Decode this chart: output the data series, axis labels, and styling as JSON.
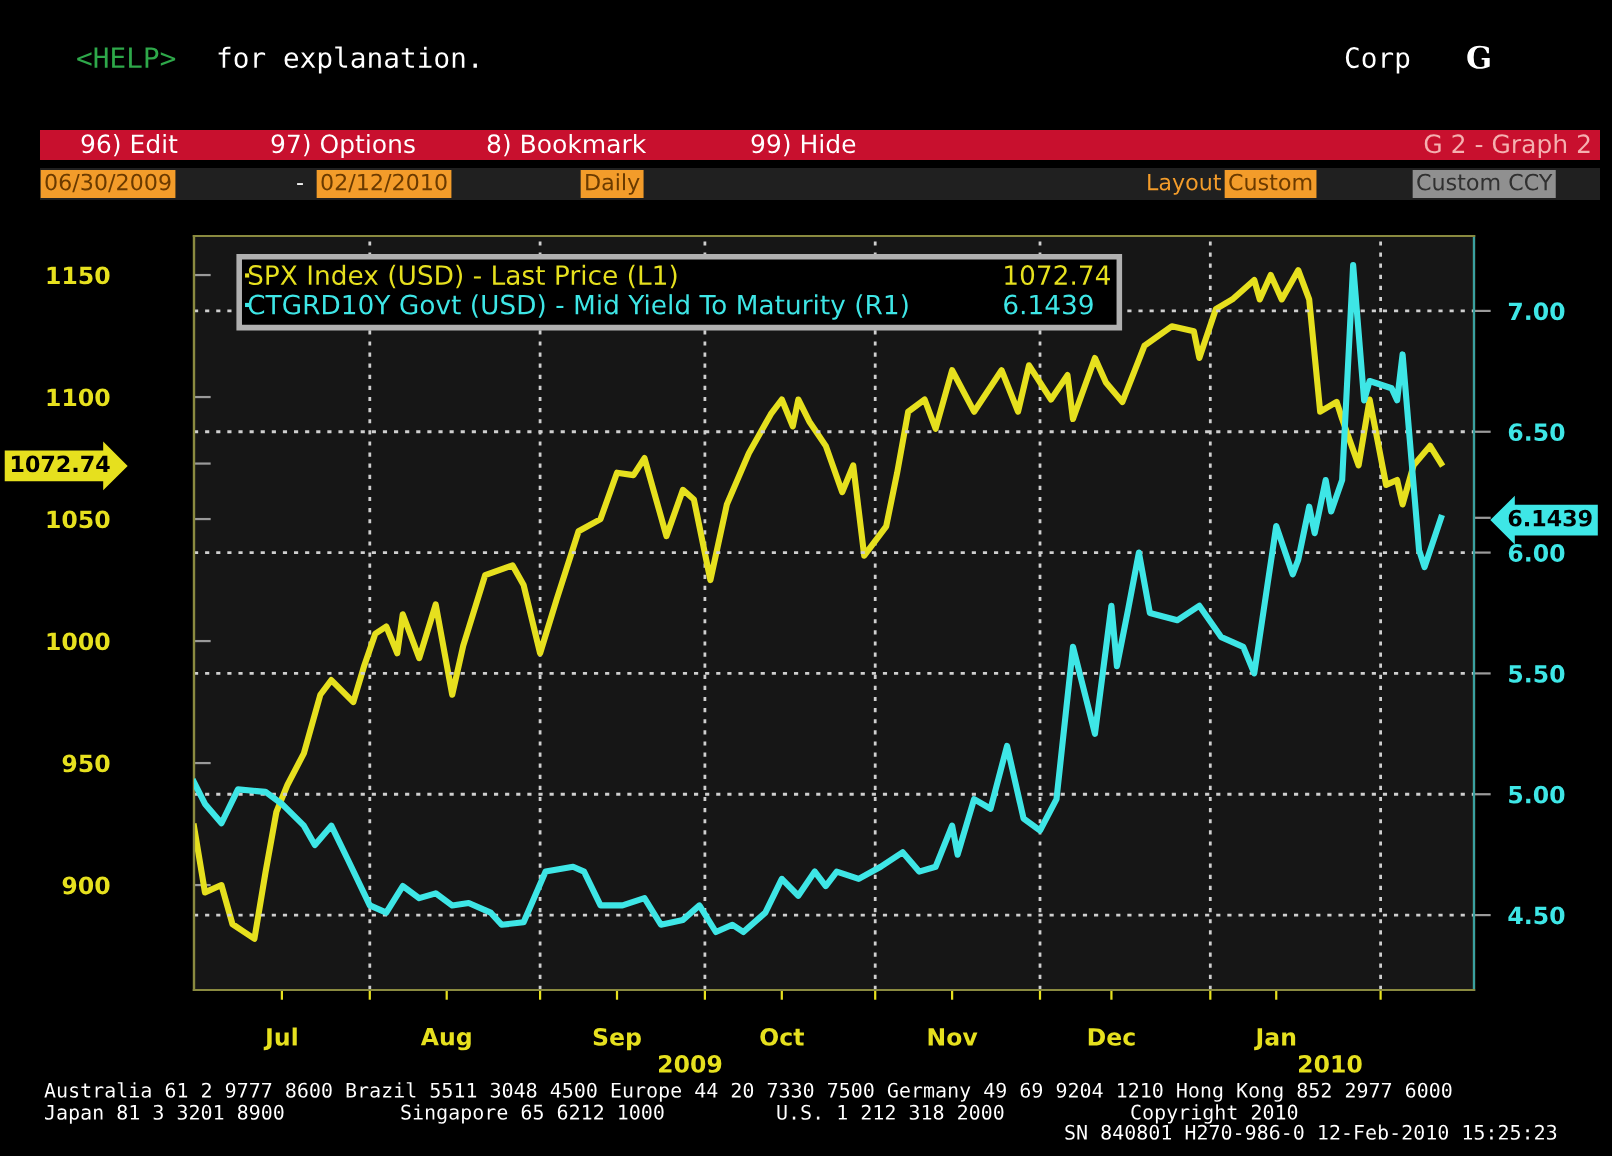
{
  "chart_data": {
    "type": "line",
    "series": [
      {
        "name": "SPX Index (USD) - Last Price (L1)",
        "color": "#e6e01e",
        "axis": "y",
        "x": [
          "2009-06-30",
          "2009-07-02",
          "2009-07-05",
          "2009-07-07",
          "2009-07-09",
          "2009-07-11",
          "2009-07-13",
          "2009-07-15",
          "2009-07-17",
          "2009-07-20",
          "2009-07-23",
          "2009-07-25",
          "2009-07-29",
          "2009-07-31",
          "2009-08-02",
          "2009-08-04",
          "2009-08-06",
          "2009-08-07",
          "2009-08-10",
          "2009-08-13",
          "2009-08-16",
          "2009-08-18",
          "2009-08-22",
          "2009-08-27",
          "2009-08-29",
          "2009-09-01",
          "2009-09-04",
          "2009-09-08",
          "2009-09-12",
          "2009-09-15",
          "2009-09-18",
          "2009-09-20",
          "2009-09-24",
          "2009-09-27",
          "2009-09-29",
          "2009-10-02",
          "2009-10-05",
          "2009-10-09",
          "2009-10-13",
          "2009-10-15",
          "2009-10-17",
          "2009-10-18",
          "2009-10-20",
          "2009-10-23",
          "2009-10-26",
          "2009-10-28",
          "2009-10-30",
          "2009-11-03",
          "2009-11-05",
          "2009-11-07",
          "2009-11-10",
          "2009-11-12",
          "2009-11-15",
          "2009-11-19",
          "2009-11-24",
          "2009-11-27",
          "2009-11-29",
          "2009-12-03",
          "2009-12-06",
          "2009-12-07",
          "2009-12-11",
          "2009-12-13",
          "2009-12-16",
          "2009-12-20",
          "2009-12-25",
          "2009-12-29",
          "2009-12-30",
          "2010-01-02",
          "2010-01-05",
          "2010-01-09",
          "2010-01-10",
          "2010-01-12",
          "2010-01-14",
          "2010-01-17",
          "2010-01-19",
          "2010-01-21",
          "2010-01-24",
          "2010-01-25",
          "2010-01-28",
          "2010-01-30",
          "2010-02-02",
          "2010-02-04",
          "2010-02-05",
          "2010-02-07",
          "2010-02-10",
          "2010-02-12"
        ],
        "values": [
          924,
          897,
          900,
          884,
          881,
          878,
          905,
          930,
          941,
          954,
          978,
          984,
          975,
          990,
          1003,
          1006,
          995,
          1011,
          993,
          1015,
          978,
          998,
          1027,
          1031,
          1023,
          995,
          1017,
          1045,
          1050,
          1069,
          1068,
          1075,
          1043,
          1062,
          1058,
          1025,
          1056,
          1077,
          1093,
          1099,
          1088,
          1099,
          1090,
          1080,
          1061,
          1072,
          1035,
          1047,
          1069,
          1094,
          1099,
          1087,
          1111,
          1094,
          1111,
          1094,
          1113,
          1099,
          1109,
          1091,
          1116,
          1106,
          1098,
          1121,
          1129,
          1127,
          1116,
          1136,
          1140,
          1148,
          1140,
          1150,
          1140,
          1152,
          1140,
          1094,
          1098,
          1091,
          1072,
          1099,
          1064,
          1066,
          1056,
          1072,
          1080,
          1072.74
        ],
        "value_labels": [
          null,
          null,
          null,
          null,
          null,
          null,
          null,
          null,
          null,
          null,
          null,
          null,
          null,
          null,
          null,
          null,
          null,
          null,
          null,
          null,
          null,
          null,
          null,
          null,
          null,
          null,
          null,
          null,
          null,
          null,
          null,
          null,
          null,
          null,
          null,
          null,
          null,
          null,
          null,
          null,
          null,
          null,
          null,
          null,
          null,
          null,
          null,
          null,
          null,
          null,
          null,
          null,
          null,
          null,
          null,
          null,
          null,
          null,
          null,
          null,
          null,
          null,
          null,
          null,
          null,
          null,
          null,
          null,
          null,
          null,
          null,
          null,
          null,
          null,
          null,
          null,
          null,
          null,
          null,
          null,
          null,
          null,
          null,
          null,
          null,
          null
        ]
      },
      {
        "name": "CTGRD10Y Govt (USD) - Mid Yield To Maturity (R1)",
        "color": "#3ee6e6",
        "axis": "y2",
        "x": [
          "2009-06-30",
          "2009-07-02",
          "2009-07-05",
          "2009-07-08",
          "2009-07-13",
          "2009-07-16",
          "2009-07-20",
          "2009-07-22",
          "2009-07-25",
          "2009-07-28",
          "2009-08-01",
          "2009-08-04",
          "2009-08-07",
          "2009-08-10",
          "2009-08-13",
          "2009-08-16",
          "2009-08-19",
          "2009-08-23",
          "2009-08-25",
          "2009-08-29",
          "2009-09-02",
          "2009-09-07",
          "2009-09-09",
          "2009-09-12",
          "2009-09-16",
          "2009-09-20",
          "2009-09-23",
          "2009-09-27",
          "2009-09-30",
          "2009-10-03",
          "2009-10-06",
          "2009-10-08",
          "2009-10-12",
          "2009-10-15",
          "2009-10-18",
          "2009-10-21",
          "2009-10-23",
          "2009-10-25",
          "2009-10-29",
          "2009-11-02",
          "2009-11-06",
          "2009-11-09",
          "2009-11-12",
          "2009-11-15",
          "2009-11-16",
          "2009-11-19",
          "2009-11-22",
          "2009-11-25",
          "2009-11-28",
          "2009-12-01",
          "2009-12-04",
          "2009-12-07",
          "2009-12-11",
          "2009-12-14",
          "2009-12-15",
          "2009-12-17",
          "2009-12-19",
          "2009-12-21",
          "2009-12-26",
          "2009-12-30",
          "2010-01-03",
          "2010-01-07",
          "2010-01-09",
          "2010-01-13",
          "2010-01-16",
          "2010-01-17",
          "2010-01-19",
          "2010-01-20",
          "2010-01-22",
          "2010-01-23",
          "2010-01-25",
          "2010-01-27",
          "2010-01-29",
          "2010-01-30",
          "2010-02-03",
          "2010-02-04",
          "2010-02-05",
          "2010-02-08",
          "2010-02-09",
          "2010-02-12"
        ],
        "values": [
          5.05,
          4.96,
          4.88,
          5.02,
          5.01,
          4.96,
          4.87,
          4.79,
          4.87,
          4.73,
          4.54,
          4.51,
          4.62,
          4.57,
          4.59,
          4.54,
          4.55,
          4.51,
          4.46,
          4.47,
          4.68,
          4.7,
          4.68,
          4.54,
          4.54,
          4.57,
          4.46,
          4.48,
          4.54,
          4.43,
          4.46,
          4.43,
          4.51,
          4.65,
          4.58,
          4.68,
          4.62,
          4.68,
          4.65,
          4.7,
          4.76,
          4.68,
          4.7,
          4.87,
          4.75,
          4.98,
          4.94,
          5.2,
          4.9,
          4.85,
          4.98,
          5.61,
          5.25,
          5.78,
          5.53,
          5.76,
          6.0,
          5.75,
          5.72,
          5.78,
          5.65,
          5.61,
          5.5,
          6.11,
          5.91,
          5.97,
          6.19,
          6.08,
          6.3,
          6.17,
          6.3,
          7.19,
          6.63,
          6.71,
          6.68,
          6.63,
          6.82,
          6.01,
          5.94,
          6.1439
        ],
        "value_labels": [
          null,
          null,
          null,
          null,
          null,
          null,
          null,
          null,
          null,
          null,
          null,
          null,
          null,
          null,
          null,
          null,
          null,
          null,
          null,
          null,
          null,
          null,
          null,
          null,
          null,
          null,
          null,
          null,
          null,
          null,
          null,
          null,
          null,
          null,
          null,
          null,
          null,
          null,
          null,
          null,
          null,
          null,
          null,
          null,
          null,
          null,
          null,
          null,
          null,
          null,
          null,
          null,
          null,
          null,
          null,
          null,
          null,
          null,
          null,
          null,
          null,
          null,
          null,
          null,
          null,
          null,
          null,
          null,
          null,
          null,
          null,
          null,
          null,
          null,
          null,
          null,
          null,
          null,
          null,
          null
        ]
      }
    ],
    "xlim": [
      "2009-06-30",
      "2010-02-18"
    ],
    "xticks": [
      {
        "value": "2009-07-16",
        "label": "Jul"
      },
      {
        "value": "2009-08-01",
        "label": null
      },
      {
        "value": "2009-08-15",
        "label": "Aug"
      },
      {
        "value": "2009-09-01",
        "label": null
      },
      {
        "value": "2009-09-15",
        "label": "Sep"
      },
      {
        "value": "2009-10-01",
        "label": null
      },
      {
        "value": "2009-10-15",
        "label": "Oct"
      },
      {
        "value": "2009-11-01",
        "label": null
      },
      {
        "value": "2009-11-15",
        "label": "Nov"
      },
      {
        "value": "2009-12-01",
        "label": null
      },
      {
        "value": "2009-12-14",
        "label": "Dec"
      },
      {
        "value": "2010-01-01",
        "label": null
      },
      {
        "value": "2010-01-13",
        "label": "Jan"
      },
      {
        "value": "2010-02-01",
        "label": null
      }
    ],
    "ylim": [
      857,
      1166
    ],
    "yticks": [
      900,
      950,
      1000,
      1050,
      1100,
      1150,
      {
        "value": 1072.74,
        "label": "1072.74"
      }
    ],
    "y2lim": [
      4.19,
      7.31
    ],
    "y2ticks": [
      {
        "value": 4.5,
        "label": "4.50"
      },
      {
        "value": 5,
        "label": "5.00"
      },
      {
        "value": 5.5,
        "label": "5.50"
      },
      {
        "value": 6,
        "label": "6.00"
      },
      {
        "value": 6.5,
        "label": "6.50"
      },
      {
        "value": 7,
        "label": "7.00"
      },
      {
        "value": 6.1439,
        "label": "6.1439"
      }
    ],
    "grid": true,
    "legend": "top left",
    "marker": "none",
    "line_style": "solid",
    "annotations": [
      "1072.74",
      "6.1439",
      "<HELP>",
      "for explanation.",
      "Corp",
      "G",
      "96) Edit",
      "97) Options",
      "8) Bookmark",
      "99) Hide",
      "G 2 - Graph 2",
      "06/30/2009",
      "-",
      "02/12/2010",
      "Daily",
      "Layout",
      "Custom",
      "Custom CCY",
      "2009",
      "2010",
      "Australia 61 2 9777 8600 Brazil 5511 3048 4500 Europe 44 20 7330 7500 Germany 49 69 9204 1210 Hong Kong 852 2977 6000",
      "Japan 81 3 3201 8900",
      "Singapore 65 6212 1000",
      "U.S. 1 212 318 2000",
      "Copyright 2010",
      "SN 840801 H270-986-0 12-Feb-2010 15:25:23"
    ]
  }
}
